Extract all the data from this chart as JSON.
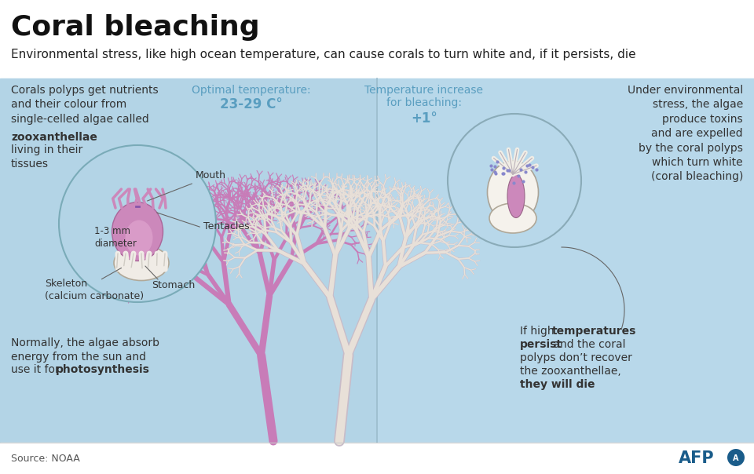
{
  "title": "Coral bleaching",
  "subtitle": "Environmental stress, like high ocean temperature, can cause corals to turn white and, if it persists, die",
  "bg_color_left": "#b3d4e6",
  "bg_color_right": "#b8d8ea",
  "bg_white": "#ffffff",
  "optimal_temp_label": "Optimal temperature:",
  "optimal_temp_value": "23-29 C°",
  "bleaching_label": "Temperature increase\nfor bleaching:",
  "bleaching_value": "+1°",
  "text_color_temp": "#5a9ec0",
  "text_color_dark": "#333333",
  "coral_pink": "#c87cb8",
  "coral_white": "#e8e0d8",
  "coral_white_outline": "#c8bcc8",
  "polyp_pink": "#cc88bb",
  "source_text": "Source: NOAA",
  "afp_color": "#1a5c8a",
  "label_mouth": "Mouth",
  "label_tentacles": "Tentacles",
  "label_skeleton": "Skeleton\n(calcium carbonate)",
  "label_stomach": "Stomach",
  "label_diameter": "1-3 mm\ndiameter"
}
